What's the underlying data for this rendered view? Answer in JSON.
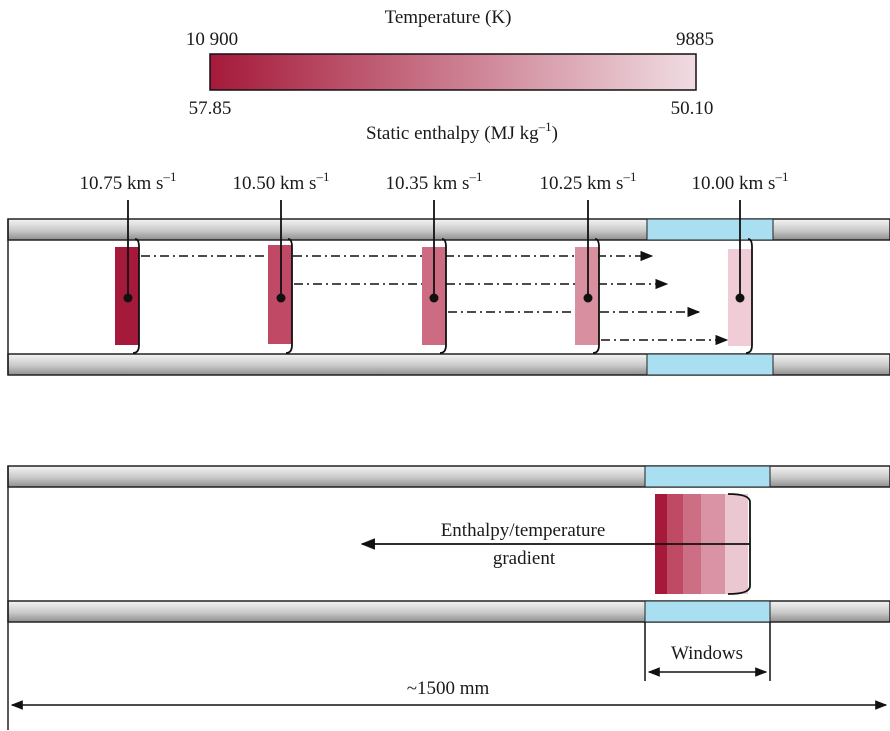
{
  "colors": {
    "hot": "#a51a3a",
    "cold": "#f0dce2",
    "window": "#a9dff0",
    "tube_light": "#f2f2f2",
    "tube_dark": "#9a9a9a"
  },
  "colorbar": {
    "title": "Temperature (K)",
    "temp_max": "10 900",
    "temp_min": "9885",
    "enthalpy_max": "57.85",
    "enthalpy_min": "50.10",
    "subtitle_prefix": "Static enthalpy (MJ kg",
    "subtitle_sup": "–1",
    "subtitle_suffix": ")"
  },
  "velocities": [
    {
      "value": "10.75 km s",
      "sup": "–1",
      "color": "#a51a3a"
    },
    {
      "value": "10.50 km s",
      "sup": "–1",
      "color": "#c04a65"
    },
    {
      "value": "10.35 km s",
      "sup": "–1",
      "color": "#cc6b82"
    },
    {
      "value": "10.25 km s",
      "sup": "–1",
      "color": "#d890a1"
    },
    {
      "value": "10.00 km s",
      "sup": "–1",
      "color": "#efccd6"
    }
  ],
  "gradient_slices": [
    "#a51a3a",
    "#bf4a63",
    "#cc6e84",
    "#d993a4",
    "#ebc7d1"
  ],
  "gradient_label_line1": "Enthalpy/temperature",
  "gradient_label_line2": "gradient",
  "windows_label": "Windows",
  "length_label": "~1500 mm"
}
